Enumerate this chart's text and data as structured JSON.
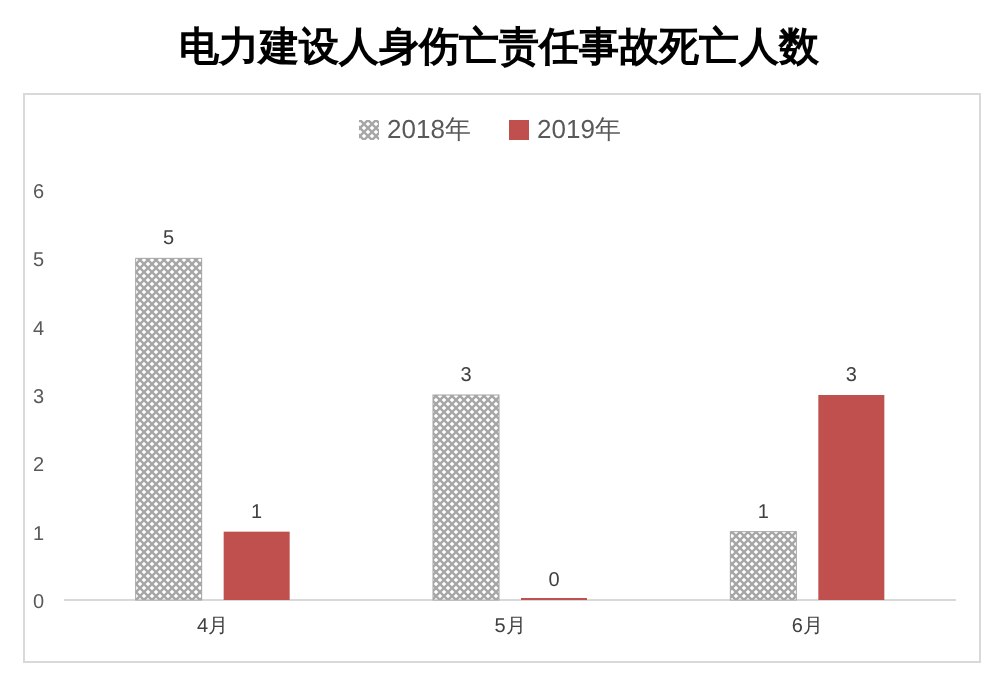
{
  "chart_data": {
    "type": "bar",
    "title": "电力建设人身伤亡责任事故死亡人数",
    "categories": [
      "4月",
      "5月",
      "6月"
    ],
    "series": [
      {
        "name": "2018年",
        "color": "#a6a6a6",
        "values": [
          5,
          3,
          1
        ]
      },
      {
        "name": "2019年",
        "color": "#c0504d",
        "values": [
          1,
          0,
          3
        ]
      }
    ],
    "ylim": [
      0,
      6
    ],
    "yticks": [
      0,
      1,
      2,
      3,
      4,
      5,
      6
    ],
    "grid": false,
    "legend": "top",
    "data_labels": true
  }
}
